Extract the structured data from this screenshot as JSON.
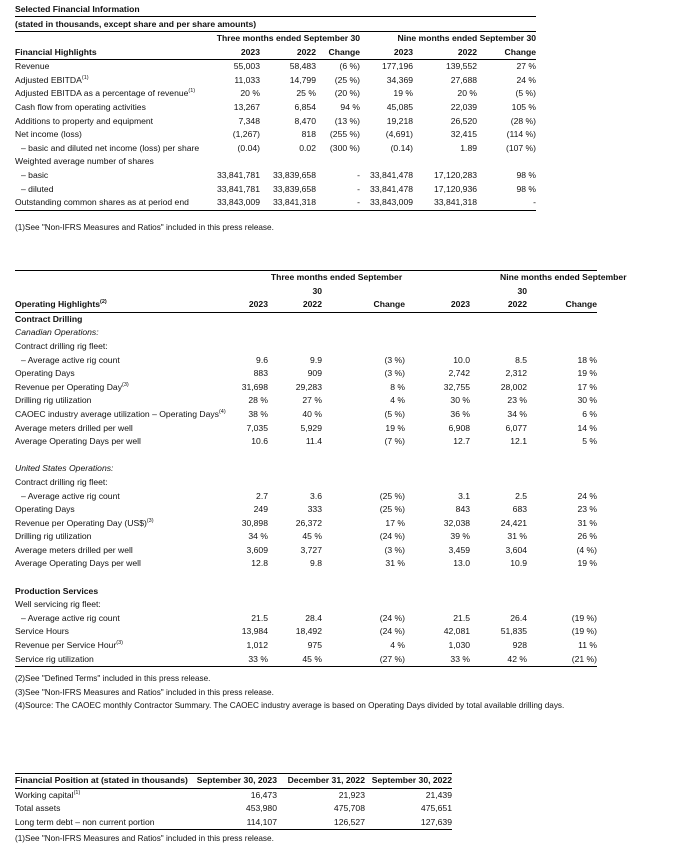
{
  "financial": {
    "title": "Selected Financial Information",
    "subtitle": "(stated in thousands, except share and per share amounts)",
    "group1": "Three months ended September 30",
    "group2": "Nine months ended September 30",
    "columns": [
      "Financial Highlights",
      "2023",
      "2022",
      "Change",
      "2023",
      "2022",
      "Change"
    ],
    "rows": [
      {
        "label": "Revenue",
        "v": [
          "55,003",
          "58,483",
          "(6 %)",
          "177,196",
          "139,552",
          "27 %"
        ]
      },
      {
        "label": "Adjusted EBITDA",
        "sup": "(1)",
        "v": [
          "11,033",
          "14,799",
          "(25 %)",
          "34,369",
          "27,688",
          "24 %"
        ]
      },
      {
        "label": "Adjusted EBITDA as a percentage of revenue",
        "sup": "(1)",
        "v": [
          "20 %",
          "25 %",
          "(20 %)",
          "19 %",
          "20 %",
          "(5 %)"
        ]
      },
      {
        "label": "Cash flow from operating activities",
        "v": [
          "13,267",
          "6,854",
          "94 %",
          "45,085",
          "22,039",
          "105 %"
        ]
      },
      {
        "label": "Additions to property and equipment",
        "v": [
          "7,348",
          "8,470",
          "(13 %)",
          "19,218",
          "26,520",
          "(28 %)"
        ]
      },
      {
        "label": "Net income (loss)",
        "v": [
          "(1,267)",
          "818",
          "(255 %)",
          "(4,691)",
          "32,415",
          "(114 %)"
        ]
      },
      {
        "label": "– basic and diluted net income (loss) per share",
        "indent": true,
        "v": [
          "(0.04)",
          "0.02",
          "(300 %)",
          "(0.14)",
          "1.89",
          "(107 %)"
        ]
      },
      {
        "label": "Weighted average number of shares",
        "v": [
          "",
          "",
          "",
          "",
          "",
          ""
        ]
      },
      {
        "label": "– basic",
        "indent": true,
        "v": [
          "33,841,781",
          "33,839,658",
          "-",
          "33,841,478",
          "17,120,283",
          "98 %"
        ]
      },
      {
        "label": "– diluted",
        "indent": true,
        "v": [
          "33,841,781",
          "33,839,658",
          "-",
          "33,841,478",
          "17,120,936",
          "98 %"
        ]
      },
      {
        "label": "Outstanding common shares as at period end",
        "v": [
          "33,843,009",
          "33,841,318",
          "-",
          "33,843,009",
          "33,841,318",
          "-"
        ]
      }
    ],
    "footnotes": [
      {
        "key": "(1)",
        "text": "See \"Non-IFRS Measures and Ratios\" included in this press release."
      }
    ]
  },
  "operating": {
    "group1": "Three months ended September",
    "group1b": "30",
    "group2": "Nine months ended September",
    "group2b": "30",
    "columns": [
      "Operating Highlights",
      "2023",
      "2022",
      "Change",
      "2023",
      "2022",
      "Change"
    ],
    "columns_sup": "(2)",
    "rows": [
      {
        "label": "Contract Drilling",
        "style": "b"
      },
      {
        "label": "Canadian Operations:",
        "style": "i"
      },
      {
        "label": "Contract drilling rig fleet:"
      },
      {
        "label": "– Average active rig count",
        "indent": true,
        "v": [
          "9.6",
          "9.9",
          "(3 %)",
          "10.0",
          "8.5",
          "18 %"
        ]
      },
      {
        "label": "Operating Days",
        "v": [
          "883",
          "909",
          "(3 %)",
          "2,742",
          "2,312",
          "19 %"
        ]
      },
      {
        "label": "Revenue per Operating Day",
        "sup": "(3)",
        "v": [
          "31,698",
          "29,283",
          "8 %",
          "32,755",
          "28,002",
          "17 %"
        ]
      },
      {
        "label": "Drilling rig utilization",
        "v": [
          "28 %",
          "27 %",
          "4 %",
          "30 %",
          "23 %",
          "30 %"
        ]
      },
      {
        "label": "CAOEC industry average utilization – Operating Days",
        "sup": "(4)",
        "v": [
          "38 %",
          "40 %",
          "(5 %)",
          "36 %",
          "34 %",
          "6 %"
        ]
      },
      {
        "label": "Average meters drilled per well",
        "v": [
          "7,035",
          "5,929",
          "19 %",
          "6,908",
          "6,077",
          "14 %"
        ]
      },
      {
        "label": "Average Operating Days per well",
        "v": [
          "10.6",
          "11.4",
          "(7 %)",
          "12.7",
          "12.1",
          "5 %"
        ]
      },
      {
        "label": ""
      },
      {
        "label": "United States Operations:",
        "style": "i"
      },
      {
        "label": "Contract drilling rig fleet:"
      },
      {
        "label": "– Average active rig count",
        "indent": true,
        "v": [
          "2.7",
          "3.6",
          "(25 %)",
          "3.1",
          "2.5",
          "24 %"
        ]
      },
      {
        "label": "Operating Days",
        "v": [
          "249",
          "333",
          "(25 %)",
          "843",
          "683",
          "23 %"
        ]
      },
      {
        "label": "Revenue per Operating Day (US$)",
        "sup": "(3)",
        "v": [
          "30,898",
          "26,372",
          "17 %",
          "32,038",
          "24,421",
          "31 %"
        ]
      },
      {
        "label": "Drilling rig utilization",
        "v": [
          "34 %",
          "45 %",
          "(24 %)",
          "39 %",
          "31 %",
          "26 %"
        ]
      },
      {
        "label": "Average meters drilled per well",
        "v": [
          "3,609",
          "3,727",
          "(3 %)",
          "3,459",
          "3,604",
          "(4 %)"
        ]
      },
      {
        "label": "Average Operating Days per well",
        "v": [
          "12.8",
          "9.8",
          "31 %",
          "13.0",
          "10.9",
          "19 %"
        ]
      },
      {
        "label": ""
      },
      {
        "label": "Production Services",
        "style": "b"
      },
      {
        "label": "Well servicing rig fleet:"
      },
      {
        "label": "– Average active rig count",
        "indent": true,
        "v": [
          "21.5",
          "28.4",
          "(24 %)",
          "21.5",
          "26.4",
          "(19 %)"
        ]
      },
      {
        "label": "Service Hours",
        "v": [
          "13,984",
          "18,492",
          "(24 %)",
          "42,081",
          "51,835",
          "(19 %)"
        ]
      },
      {
        "label": "Revenue per Service Hour",
        "sup": "(3)",
        "v": [
          "1,012",
          "975",
          "4 %",
          "1,030",
          "928",
          "11 %"
        ]
      },
      {
        "label": "Service rig utilization",
        "v": [
          "33 %",
          "45 %",
          "(27 %)",
          "33 %",
          "42 %",
          "(21 %)"
        ]
      }
    ],
    "footnotes": [
      {
        "key": "(2)",
        "text": "See \"Defined Terms\" included in this press release."
      },
      {
        "key": "(3)",
        "text": "See \"Non-IFRS Measures and Ratios\" included in this press release."
      },
      {
        "key": "(4)",
        "text": "Source: The CAOEC monthly Contractor Summary. The CAOEC industry average is based on Operating Days divided by total available drilling days."
      }
    ]
  },
  "position": {
    "columns": [
      "Financial Position at (stated in thousands)",
      "September 30, 2023",
      "December 31, 2022",
      "September 30, 2022"
    ],
    "rows": [
      {
        "label": "Working capital",
        "sup": "(1)",
        "v": [
          "16,473",
          "21,923",
          "21,439"
        ]
      },
      {
        "label": "Total assets",
        "v": [
          "453,980",
          "475,708",
          "475,651"
        ]
      },
      {
        "label": "Long term debt – non current portion",
        "v": [
          "114,107",
          "126,527",
          "127,639"
        ]
      }
    ],
    "footnotes": [
      {
        "key": "(1)",
        "text": "See \"Non-IFRS Measures and Ratios\" included in this press release."
      }
    ]
  }
}
